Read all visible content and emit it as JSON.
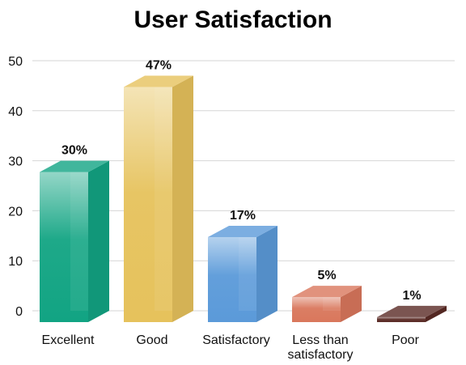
{
  "chart_data": {
    "type": "bar",
    "title": "User Satisfaction",
    "categories": [
      "Excellent",
      "Good",
      "Satisfactory",
      "Less than satisfactory",
      "Poor"
    ],
    "category_lines": [
      [
        "Excellent"
      ],
      [
        "Good"
      ],
      [
        "Satisfactory"
      ],
      [
        "Less than",
        "satisfactory"
      ],
      [
        "Poor"
      ]
    ],
    "values": [
      30,
      47,
      17,
      5,
      1
    ],
    "data_labels": [
      "30%",
      "47%",
      "17%",
      "5%",
      "1%"
    ],
    "ylim": [
      0,
      50
    ],
    "yticks": [
      0,
      10,
      20,
      30,
      40,
      50
    ],
    "grid": true,
    "xlabel": "",
    "ylabel": "",
    "colors": [
      "#12a483",
      "#e6c25c",
      "#5b9ad9",
      "#d9775c",
      "#5a2a25"
    ]
  }
}
